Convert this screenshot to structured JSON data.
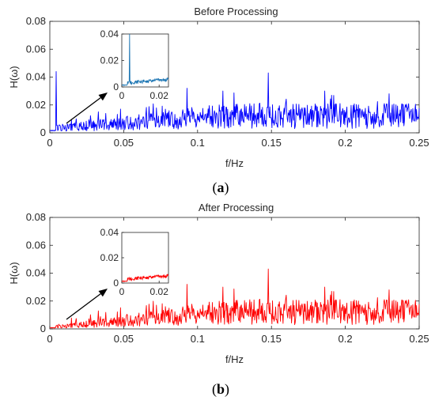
{
  "chart_data": [
    {
      "type": "line",
      "title": "Before Processing",
      "xlabel": "f/Hz",
      "ylabel": "H(ω)",
      "xlim": [
        0,
        0.25
      ],
      "ylim": [
        0,
        0.08
      ],
      "xticks": [
        "0",
        "0.05",
        "0.1",
        "0.15",
        "0.2",
        "0.25"
      ],
      "yticks": [
        "0",
        "0.02",
        "0.04",
        "0.06",
        "0.08"
      ],
      "caption_letter": "a",
      "color": "#0000ff",
      "peaks": [
        {
          "x": 0.0042,
          "y": 0.044
        },
        {
          "x": 0.148,
          "y": 0.043
        },
        {
          "x": 0.093,
          "y": 0.032
        },
        {
          "x": 0.117,
          "y": 0.03
        },
        {
          "x": 0.186,
          "y": 0.03
        }
      ],
      "baseline_start": 0.003,
      "baseline_end": 0.012,
      "inset": {
        "xlim": [
          0,
          0.025
        ],
        "ylim": [
          0,
          0.04
        ],
        "xticks": [
          "0",
          "0.02"
        ],
        "yticks": [
          "0",
          "0.02",
          "0.04"
        ],
        "color": "#1f77b4",
        "peak": {
          "x": 0.0042,
          "y": 0.04
        }
      }
    },
    {
      "type": "line",
      "title": "After Processing",
      "xlabel": "f/Hz",
      "ylabel": "H(ω)",
      "xlim": [
        0,
        0.25
      ],
      "ylim": [
        0,
        0.08
      ],
      "xticks": [
        "0",
        "0.05",
        "0.1",
        "0.15",
        "0.2",
        "0.25"
      ],
      "yticks": [
        "0",
        "0.02",
        "0.04",
        "0.06",
        "0.08"
      ],
      "caption_letter": "b",
      "color": "#ff0000",
      "peaks": [
        {
          "x": 0.148,
          "y": 0.043
        },
        {
          "x": 0.093,
          "y": 0.032
        },
        {
          "x": 0.117,
          "y": 0.03
        },
        {
          "x": 0.186,
          "y": 0.03
        }
      ],
      "baseline_start": 0.001,
      "baseline_end": 0.012,
      "inset": {
        "xlim": [
          0,
          0.025
        ],
        "ylim": [
          0,
          0.04
        ],
        "xticks": [
          "0",
          "0.02"
        ],
        "yticks": [
          "0",
          "0.02",
          "0.04"
        ],
        "color": "#ff0000",
        "peak": null
      }
    }
  ]
}
